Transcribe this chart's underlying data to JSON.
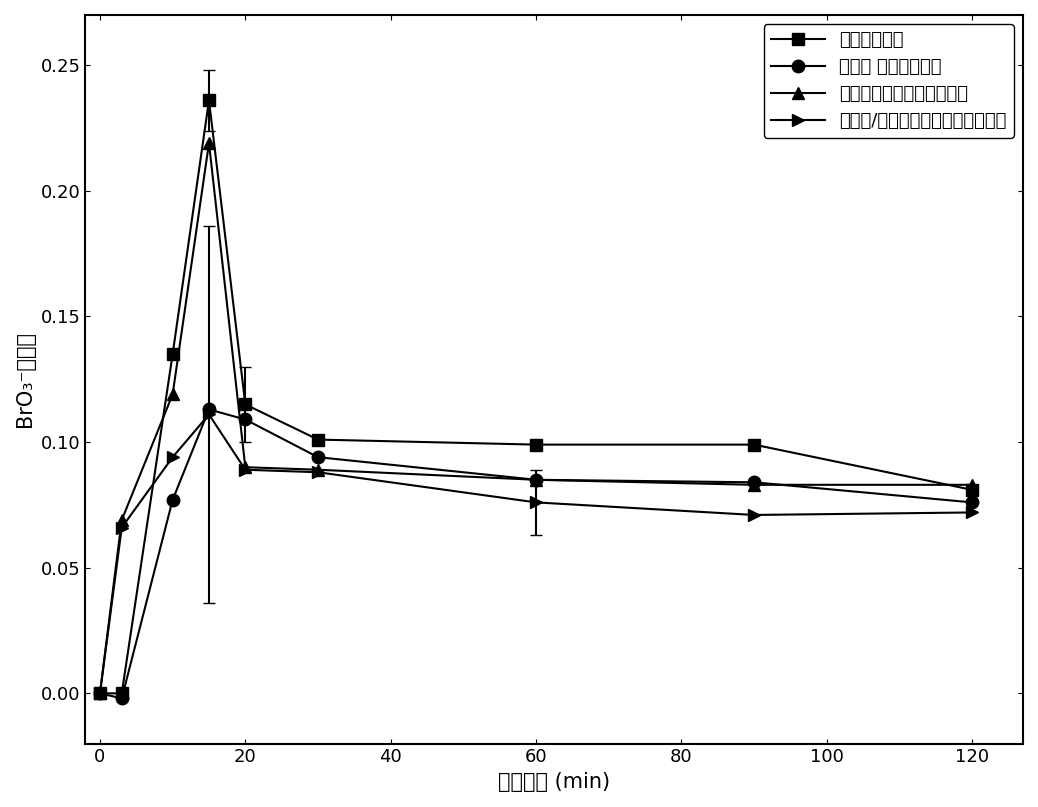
{
  "title": "",
  "xlabel": "反应时间 (min)",
  "ylabel": "BrO₃⁻转化率",
  "xlim": [
    -2,
    127
  ],
  "ylim": [
    -0.02,
    0.27
  ],
  "xticks": [
    0,
    20,
    40,
    60,
    80,
    100,
    120
  ],
  "yticks": [
    0.0,
    0.05,
    0.1,
    0.15,
    0.2,
    0.25
  ],
  "series": [
    {
      "label": "单独臭氧氧化",
      "marker": "s",
      "x": [
        0,
        3,
        10,
        15,
        20,
        30,
        60,
        90,
        120
      ],
      "y": [
        0.0,
        0.0,
        0.135,
        0.236,
        0.115,
        0.101,
        0.099,
        0.099,
        0.081
      ],
      "yerr": [
        0,
        0,
        0,
        0.012,
        0.015,
        0,
        0,
        0,
        0
      ]
    },
    {
      "label": "钴酸镧 催化臭氧氧化",
      "marker": "o",
      "x": [
        0,
        3,
        10,
        15,
        20,
        30,
        60,
        90,
        120
      ],
      "y": [
        0.0,
        -0.002,
        0.077,
        0.113,
        0.109,
        0.094,
        0.085,
        0.084,
        0.076
      ],
      "yerr": [
        0,
        0,
        0,
        0,
        0,
        0,
        0,
        0,
        0
      ]
    },
    {
      "label": "石墨相氮化碳催化臭氧氧化",
      "marker": "^",
      "x": [
        0,
        3,
        10,
        15,
        20,
        30,
        60,
        90,
        120
      ],
      "y": [
        0.0,
        0.069,
        0.119,
        0.219,
        0.09,
        0.089,
        0.085,
        0.083,
        0.083
      ],
      "yerr": [
        0,
        0,
        0,
        0,
        0,
        0,
        0,
        0,
        0
      ]
    },
    {
      "label": "钴酸镧/石墨相氮化碳催化臭氧氧化",
      "marker": ">",
      "x": [
        0,
        3,
        10,
        15,
        20,
        30,
        60,
        90,
        120
      ],
      "y": [
        0.0,
        0.066,
        0.094,
        0.111,
        0.089,
        0.088,
        0.076,
        0.071,
        0.072
      ],
      "yerr": [
        0,
        0,
        0,
        0.075,
        0,
        0,
        0.013,
        0,
        0
      ]
    }
  ],
  "line_color": "#000000",
  "markersize": 9,
  "linewidth": 1.5,
  "legend_fontsize": 13,
  "axis_fontsize": 15,
  "tick_fontsize": 13,
  "background_color": "#ffffff"
}
